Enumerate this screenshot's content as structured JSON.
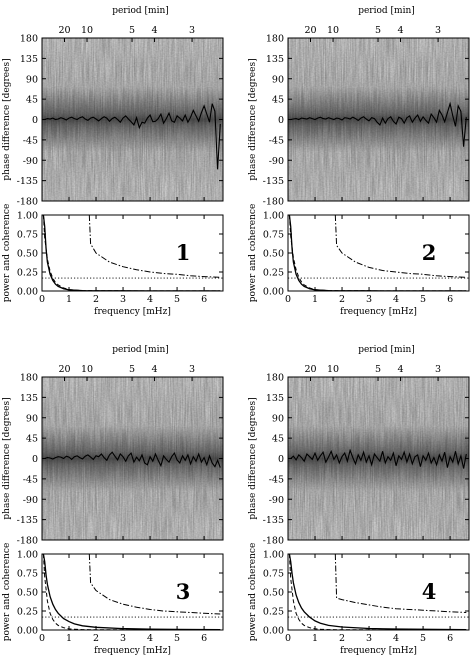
{
  "chart_data": [
    {
      "type": "heatmap",
      "panel_number": "1",
      "phase": {
        "ylabel": "phase difference [degrees]",
        "yticks": [
          180,
          135,
          90,
          45,
          0,
          -45,
          -90,
          -135,
          -180
        ],
        "ylim": [
          -180,
          180
        ],
        "top_axis_label": "period [min]",
        "period_ticks": [
          "20",
          "10",
          "5",
          "4",
          "3"
        ],
        "period_values": [
          20,
          10,
          5,
          4,
          3
        ],
        "freq_mHz": [
          0.1,
          0.2,
          0.3,
          0.4,
          0.5,
          0.6,
          0.7,
          0.8,
          0.9,
          1.0,
          1.1,
          1.2,
          1.3,
          1.4,
          1.5,
          1.6,
          1.7,
          1.8,
          1.9,
          2.0,
          2.1,
          2.2,
          2.3,
          2.4,
          2.5,
          2.6,
          2.7,
          2.8,
          2.9,
          3.0,
          3.1,
          3.2,
          3.3,
          3.4,
          3.5,
          3.6,
          3.7,
          3.8,
          3.9,
          4.0,
          4.1,
          4.2,
          4.3,
          4.4,
          4.5,
          4.6,
          4.7,
          4.8,
          4.9,
          5.0,
          5.1,
          5.2,
          5.3,
          5.4,
          5.5,
          5.6,
          5.7,
          5.8,
          5.9,
          6.0,
          6.1,
          6.2,
          6.3,
          6.4,
          6.5,
          6.6
        ],
        "mean_phase": [
          0,
          2,
          1,
          3,
          0,
          1,
          4,
          2,
          -1,
          3,
          5,
          2,
          0,
          4,
          6,
          1,
          -2,
          3,
          5,
          1,
          -3,
          2,
          6,
          3,
          -4,
          2,
          5,
          0,
          -6,
          3,
          8,
          1,
          -5,
          -12,
          4,
          -18,
          -6,
          -8,
          3,
          10,
          -5,
          -4,
          2,
          12,
          -8,
          2,
          14,
          -3,
          -6,
          8,
          3,
          -3,
          10,
          -6,
          5,
          20,
          8,
          -4,
          15,
          30,
          12,
          -6,
          35,
          18,
          -110,
          -10
        ]
      },
      "power": {
        "xlabel": "frequency [mHz]",
        "ylabel": "power and coherence",
        "yticks": [
          1.0,
          0.75,
          0.5,
          0.25,
          0.0
        ],
        "ylim": [
          0,
          1
        ],
        "xticks": [
          0,
          1,
          2,
          3,
          4,
          5,
          6
        ],
        "xlim": [
          0,
          6.7
        ],
        "significance_level": 0.17,
        "coherence_series": {
          "x": [
            1.75,
            1.8,
            2.0,
            2.5,
            3.0,
            3.5,
            4.0,
            4.5,
            5.0,
            5.5,
            6.0,
            6.6
          ],
          "y": [
            1.0,
            0.62,
            0.5,
            0.38,
            0.32,
            0.28,
            0.25,
            0.23,
            0.22,
            0.2,
            0.19,
            0.18
          ],
          "top_x": [
            0.3,
            1.6
          ]
        },
        "power1": {
          "x": [
            0.05,
            0.1,
            0.15,
            0.2,
            0.3,
            0.4,
            0.5,
            0.6,
            0.8,
            1.0,
            1.2,
            1.5,
            2.0,
            3.0,
            4.0,
            5.0,
            6.6
          ],
          "y": [
            1.0,
            0.85,
            0.55,
            0.38,
            0.22,
            0.14,
            0.09,
            0.06,
            0.03,
            0.015,
            0.01,
            0.005,
            0.003,
            0.002,
            0.001,
            0.001,
            0.001
          ]
        },
        "power2": {
          "x": [
            0.05,
            0.1,
            0.2,
            0.3,
            0.4,
            0.5,
            0.6,
            0.8,
            1.0,
            1.2,
            1.5,
            2.0,
            3.0,
            4.0,
            5.0,
            6.6
          ],
          "y": [
            1.0,
            0.7,
            0.42,
            0.26,
            0.17,
            0.11,
            0.08,
            0.04,
            0.02,
            0.012,
            0.006,
            0.003,
            0.002,
            0.001,
            0.001,
            0.001
          ]
        }
      }
    },
    {
      "type": "heatmap",
      "panel_number": "2",
      "phase": {
        "ylabel": "phase difference [degrees]",
        "yticks": [
          180,
          135,
          90,
          45,
          0,
          -45,
          -90,
          -135,
          -180
        ],
        "ylim": [
          -180,
          180
        ],
        "top_axis_label": "period [min]",
        "period_ticks": [
          "20",
          "10",
          "5",
          "4",
          "3"
        ],
        "period_values": [
          20,
          10,
          5,
          4,
          3
        ],
        "freq_mHz": [
          0.1,
          0.2,
          0.3,
          0.4,
          0.5,
          0.6,
          0.7,
          0.8,
          0.9,
          1.0,
          1.1,
          1.2,
          1.3,
          1.4,
          1.5,
          1.6,
          1.7,
          1.8,
          1.9,
          2.0,
          2.1,
          2.2,
          2.3,
          2.4,
          2.5,
          2.6,
          2.7,
          2.8,
          2.9,
          3.0,
          3.1,
          3.2,
          3.3,
          3.4,
          3.5,
          3.6,
          3.7,
          3.8,
          3.9,
          4.0,
          4.1,
          4.2,
          4.3,
          4.4,
          4.5,
          4.6,
          4.7,
          4.8,
          4.9,
          5.0,
          5.1,
          5.2,
          5.3,
          5.4,
          5.5,
          5.6,
          5.7,
          5.8,
          5.9,
          6.0,
          6.1,
          6.2,
          6.3,
          6.4,
          6.5,
          6.6
        ],
        "mean_phase": [
          0,
          1,
          2,
          0,
          3,
          2,
          1,
          4,
          2,
          0,
          3,
          5,
          2,
          1,
          4,
          2,
          0,
          3,
          2,
          -1,
          4,
          3,
          1,
          5,
          2,
          -2,
          3,
          6,
          1,
          -3,
          4,
          2,
          -6,
          -12,
          3,
          -8,
          2,
          6,
          -4,
          -10,
          5,
          2,
          -8,
          4,
          8,
          -6,
          3,
          10,
          -4,
          6,
          -2,
          -8,
          12,
          4,
          -6,
          20,
          10,
          -5,
          15,
          35,
          8,
          -15,
          30,
          18,
          -60,
          5
        ]
      },
      "power": {
        "xlabel": "frequency [mHz]",
        "ylabel": "power and coherence",
        "yticks": [
          1.0,
          0.75,
          0.5,
          0.25,
          0.0
        ],
        "ylim": [
          0,
          1
        ],
        "xticks": [
          0,
          1,
          2,
          3,
          4,
          5,
          6
        ],
        "xlim": [
          0,
          6.7
        ],
        "significance_level": 0.17,
        "coherence_series": {
          "x": [
            1.75,
            1.8,
            2.0,
            2.5,
            3.0,
            3.5,
            4.0,
            4.5,
            5.0,
            5.5,
            6.0,
            6.6
          ],
          "y": [
            1.0,
            0.6,
            0.5,
            0.38,
            0.31,
            0.27,
            0.25,
            0.23,
            0.22,
            0.2,
            0.19,
            0.18
          ],
          "top_x": [
            0.3,
            1.6
          ]
        },
        "power1": {
          "x": [
            0.05,
            0.1,
            0.15,
            0.2,
            0.3,
            0.4,
            0.5,
            0.6,
            0.8,
            1.0,
            1.2,
            1.5,
            2.0,
            3.0,
            4.0,
            5.0,
            6.6
          ],
          "y": [
            1.0,
            0.85,
            0.55,
            0.38,
            0.22,
            0.14,
            0.09,
            0.06,
            0.03,
            0.015,
            0.01,
            0.005,
            0.003,
            0.002,
            0.001,
            0.001,
            0.001
          ]
        },
        "power2": {
          "x": [
            0.05,
            0.1,
            0.2,
            0.3,
            0.4,
            0.5,
            0.6,
            0.8,
            1.0,
            1.2,
            1.5,
            2.0,
            3.0,
            4.0,
            5.0,
            6.6
          ],
          "y": [
            1.0,
            0.72,
            0.44,
            0.28,
            0.18,
            0.12,
            0.08,
            0.04,
            0.02,
            0.012,
            0.006,
            0.003,
            0.002,
            0.001,
            0.001,
            0.001
          ]
        }
      }
    },
    {
      "type": "heatmap",
      "panel_number": "3",
      "phase": {
        "ylabel": "phase difference [degrees]",
        "yticks": [
          180,
          135,
          90,
          45,
          0,
          -45,
          -90,
          -135,
          -180
        ],
        "ylim": [
          -180,
          180
        ],
        "top_axis_label": "period [min]",
        "period_ticks": [
          "20",
          "10",
          "5",
          "4",
          "3"
        ],
        "period_values": [
          20,
          10,
          5,
          4,
          3
        ],
        "freq_mHz": [
          0.1,
          0.2,
          0.3,
          0.4,
          0.5,
          0.6,
          0.7,
          0.8,
          0.9,
          1.0,
          1.1,
          1.2,
          1.3,
          1.4,
          1.5,
          1.6,
          1.7,
          1.8,
          1.9,
          2.0,
          2.1,
          2.2,
          2.3,
          2.4,
          2.5,
          2.6,
          2.7,
          2.8,
          2.9,
          3.0,
          3.1,
          3.2,
          3.3,
          3.4,
          3.5,
          3.6,
          3.7,
          3.8,
          3.9,
          4.0,
          4.1,
          4.2,
          4.3,
          4.4,
          4.5,
          4.6,
          4.7,
          4.8,
          4.9,
          5.0,
          5.1,
          5.2,
          5.3,
          5.4,
          5.5,
          5.6,
          5.7,
          5.8,
          5.9,
          6.0,
          6.1,
          6.2,
          6.3,
          6.4,
          6.5,
          6.6
        ],
        "mean_phase": [
          0,
          2,
          1,
          -1,
          2,
          4,
          3,
          0,
          5,
          3,
          -2,
          4,
          6,
          2,
          -1,
          5,
          8,
          3,
          -2,
          6,
          4,
          10,
          2,
          -4,
          8,
          14,
          5,
          -3,
          10,
          4,
          -6,
          6,
          12,
          -8,
          3,
          -5,
          8,
          -10,
          -14,
          4,
          -6,
          10,
          -4,
          -16,
          6,
          -2,
          -8,
          4,
          12,
          -3,
          -10,
          6,
          -4,
          8,
          -12,
          4,
          -6,
          10,
          -8,
          2,
          -14,
          6,
          -10,
          -18,
          -4,
          -20
        ]
      },
      "power": {
        "xlabel": "frequency [mHz]",
        "ylabel": "power and coherence",
        "yticks": [
          1.0,
          0.75,
          0.5,
          0.25,
          0.0
        ],
        "ylim": [
          0,
          1
        ],
        "xticks": [
          0,
          1,
          2,
          3,
          4,
          5,
          6
        ],
        "xlim": [
          0,
          6.7
        ],
        "significance_level": 0.17,
        "coherence_series": {
          "x": [
            1.75,
            1.8,
            2.0,
            2.5,
            3.0,
            3.5,
            4.0,
            4.5,
            5.0,
            5.5,
            6.0,
            6.6
          ],
          "y": [
            1.0,
            0.62,
            0.52,
            0.4,
            0.34,
            0.3,
            0.27,
            0.25,
            0.24,
            0.23,
            0.22,
            0.21
          ],
          "top_x": [
            0.3,
            1.6
          ]
        },
        "power1": {
          "x": [
            0.05,
            0.1,
            0.15,
            0.2,
            0.3,
            0.4,
            0.5,
            0.6,
            0.8,
            1.0,
            1.2,
            1.5,
            2.0,
            3.0,
            4.0,
            5.0,
            6.6
          ],
          "y": [
            1.0,
            0.9,
            0.72,
            0.6,
            0.44,
            0.34,
            0.27,
            0.22,
            0.15,
            0.11,
            0.08,
            0.055,
            0.035,
            0.018,
            0.012,
            0.008,
            0.005
          ]
        },
        "power2": {
          "x": [
            0.05,
            0.1,
            0.2,
            0.3,
            0.4,
            0.5,
            0.6,
            0.8,
            1.0,
            1.2,
            1.5,
            2.0,
            3.0,
            4.0,
            5.0,
            6.6
          ],
          "y": [
            1.0,
            0.7,
            0.38,
            0.22,
            0.14,
            0.09,
            0.06,
            0.03,
            0.015,
            0.01,
            0.005,
            0.003,
            0.002,
            0.001,
            0.001,
            0.001
          ]
        }
      }
    },
    {
      "type": "heatmap",
      "panel_number": "4",
      "phase": {
        "ylabel": "phase difference [degrees]",
        "yticks": [
          180,
          135,
          90,
          45,
          0,
          -45,
          -90,
          -135,
          -180
        ],
        "ylim": [
          -180,
          180
        ],
        "top_axis_label": "period [min]",
        "period_ticks": [
          "20",
          "10",
          "5",
          "4",
          "3"
        ],
        "period_values": [
          20,
          10,
          5,
          4,
          3
        ],
        "freq_mHz": [
          0.1,
          0.2,
          0.3,
          0.4,
          0.5,
          0.6,
          0.7,
          0.8,
          0.9,
          1.0,
          1.1,
          1.2,
          1.3,
          1.4,
          1.5,
          1.6,
          1.7,
          1.8,
          1.9,
          2.0,
          2.1,
          2.2,
          2.3,
          2.4,
          2.5,
          2.6,
          2.7,
          2.8,
          2.9,
          3.0,
          3.1,
          3.2,
          3.3,
          3.4,
          3.5,
          3.6,
          3.7,
          3.8,
          3.9,
          4.0,
          4.1,
          4.2,
          4.3,
          4.4,
          4.5,
          4.6,
          4.7,
          4.8,
          4.9,
          5.0,
          5.1,
          5.2,
          5.3,
          5.4,
          5.5,
          5.6,
          5.7,
          5.8,
          5.9,
          6.0,
          6.1,
          6.2,
          6.3,
          6.4,
          6.5,
          6.6
        ],
        "mean_phase": [
          0,
          5,
          -3,
          8,
          2,
          -6,
          10,
          4,
          -2,
          12,
          -4,
          6,
          14,
          -8,
          3,
          16,
          -2,
          8,
          -10,
          4,
          12,
          -6,
          18,
          2,
          -12,
          8,
          -4,
          14,
          -8,
          6,
          -14,
          10,
          2,
          -6,
          16,
          -10,
          4,
          -4,
          12,
          -16,
          6,
          -2,
          14,
          -8,
          10,
          -12,
          4,
          8,
          -18,
          6,
          -4,
          12,
          -10,
          2,
          -14,
          8,
          -6,
          14,
          -20,
          4,
          -8,
          16,
          -12,
          6,
          -22,
          10
        ]
      },
      "power": {
        "xlabel": "frequency [mHz]",
        "ylabel": "power and coherence",
        "yticks": [
          1.0,
          0.75,
          0.5,
          0.25,
          0.0
        ],
        "ylim": [
          0,
          1
        ],
        "xticks": [
          0,
          1,
          2,
          3,
          4,
          5,
          6
        ],
        "xlim": [
          0,
          6.7
        ],
        "significance_level": 0.17,
        "coherence_series": {
          "x": [
            1.75,
            1.8,
            2.0,
            2.5,
            3.0,
            3.5,
            4.0,
            4.5,
            5.0,
            5.5,
            6.0,
            6.6
          ],
          "y": [
            1.0,
            0.42,
            0.4,
            0.36,
            0.33,
            0.3,
            0.28,
            0.27,
            0.26,
            0.25,
            0.24,
            0.23
          ],
          "top_x": [
            0.3,
            1.6
          ]
        },
        "power1": {
          "x": [
            0.05,
            0.1,
            0.15,
            0.2,
            0.3,
            0.4,
            0.5,
            0.6,
            0.8,
            1.0,
            1.2,
            1.5,
            2.0,
            3.0,
            4.0,
            5.0,
            6.6
          ],
          "y": [
            1.0,
            0.9,
            0.74,
            0.62,
            0.46,
            0.36,
            0.29,
            0.24,
            0.17,
            0.12,
            0.09,
            0.06,
            0.04,
            0.02,
            0.013,
            0.009,
            0.005
          ]
        },
        "power2": {
          "x": [
            0.05,
            0.1,
            0.2,
            0.3,
            0.4,
            0.5,
            0.6,
            0.8,
            1.0,
            1.2,
            1.5,
            2.0,
            3.0,
            4.0,
            5.0,
            6.6
          ],
          "y": [
            1.0,
            0.68,
            0.38,
            0.22,
            0.14,
            0.09,
            0.06,
            0.03,
            0.016,
            0.01,
            0.005,
            0.003,
            0.002,
            0.001,
            0.001,
            0.001
          ]
        }
      }
    }
  ]
}
